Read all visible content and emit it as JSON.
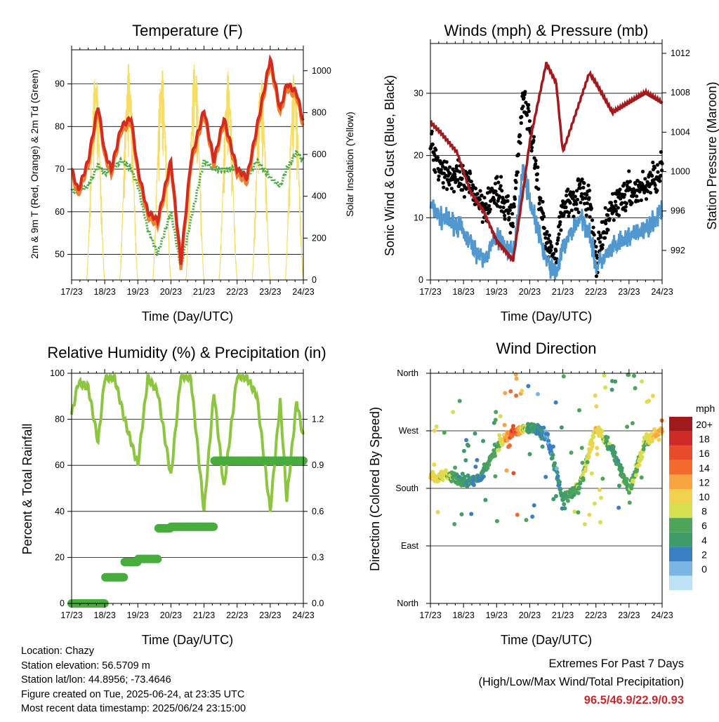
{
  "colors": {
    "temp2m": "#d42a20",
    "temp9m": "#ee7f2d",
    "dewpoint": "#4aac45",
    "solar": "#f6dd66",
    "wind": "#5198d0",
    "gust": "#000000",
    "pressure": "#a4191d",
    "rh": "#8cc63e",
    "precip": "#47ad3c",
    "extremes": "#c8282e"
  },
  "x_ticks": [
    "17/23",
    "18/23",
    "19/23",
    "20/23",
    "21/23",
    "22/23",
    "23/23",
    "24/23"
  ],
  "panels": {
    "temperature": {
      "title": "Temperature (F)",
      "ylabel_left": "2m & 9m T (Red, Orange) & 2m Td (Green)",
      "ylabel_right": "Solar Insolation (Yellow)",
      "xlabel": "Time (Day/UTC)",
      "left_ticks": [
        "50",
        "60",
        "70",
        "80",
        "90"
      ],
      "right_ticks": [
        "0",
        "200",
        "400",
        "600",
        "800",
        "1000"
      ]
    },
    "winds": {
      "title": "Winds (mph) & Pressure (mb)",
      "ylabel_left": "Sonic Wind & Gust (Blue, Black)",
      "ylabel_right": "Station Pressure (Maroon)",
      "xlabel": "Time (Day/UTC)",
      "left_ticks": [
        "0",
        "10",
        "20",
        "30"
      ],
      "right_ticks": [
        "992",
        "996",
        "1000",
        "1004",
        "1008",
        "1012"
      ]
    },
    "humidity": {
      "title": "Relative Humidity (%) & Precipitation (in)",
      "ylabel_left": "Percent & Total Rainfall",
      "xlabel": "Time (Day/UTC)",
      "left_ticks": [
        "0",
        "20",
        "40",
        "60",
        "80",
        "100"
      ],
      "right_ticks": [
        "0.0",
        "0.3",
        "0.6",
        "0.9",
        "1.2"
      ]
    },
    "direction": {
      "title": "Wind Direction",
      "ylabel_left": "Direction (Colored By Speed)",
      "xlabel": "Time (Day/UTC)",
      "left_ticks": [
        "North",
        "East",
        "South",
        "West",
        "North"
      ],
      "legend_title": "mph",
      "legend_labels": [
        "20+",
        "18",
        "16",
        "14",
        "12",
        "10",
        "8",
        "6",
        "4",
        "2",
        "0"
      ],
      "legend_colors": [
        "#a01a1c",
        "#cf2a27",
        "#e84a2c",
        "#f26a2c",
        "#f7a441",
        "#f2d14e",
        "#d6e04e",
        "#4ea55a",
        "#3f9b6a",
        "#3a7fc2",
        "#7ab5e3",
        "#bde3f7"
      ]
    }
  },
  "info": {
    "location": "Location: Chazy",
    "elevation": "Station elevation: 56.5709 m",
    "latlon": "Station lat/lon: 44.8956; -73.4646",
    "created": "Figure created on Tue, 2025-06-24, at 23:35 UTC",
    "recent": "Most recent data timestamp: 2025/06/24 23:15:00"
  },
  "extremes": {
    "title": "Extremes For Past 7 Days",
    "subtitle": "(High/Low/Max Wind/Total Precipitation)",
    "values": "96.5/46.9/22.9/0.93"
  },
  "chart_data": [
    {
      "type": "line",
      "title": "Temperature (F)",
      "xlabel": "Time (Day/UTC)",
      "ylabel": "2m & 9m T (Red, Orange) & 2m Td (Green)",
      "ylabel_right": "Solar Insolation (Yellow)",
      "ylim": [
        44,
        98
      ],
      "ylim_right": [
        0,
        1100
      ],
      "x_units": "days since 17/23",
      "x": [
        0,
        0.2,
        0.5,
        0.8,
        1.0,
        1.2,
        1.5,
        1.8,
        2.0,
        2.3,
        2.6,
        3.0,
        3.3,
        3.6,
        4.0,
        4.3,
        4.6,
        5.0,
        5.3,
        5.6,
        6.0,
        6.3,
        6.5,
        6.8,
        7.0
      ],
      "series": [
        {
          "name": "2m T",
          "values": [
            70,
            65,
            72,
            85,
            74,
            70,
            80,
            82,
            70,
            60,
            58,
            72,
            48,
            72,
            84,
            72,
            82,
            70,
            68,
            80,
            96,
            84,
            90,
            88,
            81
          ]
        },
        {
          "name": "2m Td",
          "values": [
            65,
            65,
            66,
            71,
            69,
            70,
            72,
            70,
            66,
            56,
            50,
            60,
            47,
            58,
            72,
            70,
            70,
            70,
            68,
            72,
            68,
            66,
            70,
            74,
            72
          ]
        },
        {
          "name": "Solar Insolation",
          "axis": "right",
          "peaks": [
            1000,
            1040,
            1020,
            1060,
            1000,
            980,
            1000,
            880
          ]
        }
      ],
      "x_ticks": [
        "17/23",
        "18/23",
        "19/23",
        "20/23",
        "21/23",
        "22/23",
        "23/23",
        "24/23"
      ]
    },
    {
      "type": "scatter",
      "title": "Winds (mph) & Pressure (mb)",
      "xlabel": "Time (Day/UTC)",
      "ylabel": "Sonic Wind & Gust (Blue, Black)",
      "ylabel_right": "Station Pressure (Maroon)",
      "ylim": [
        0,
        38
      ],
      "ylim_right": [
        989,
        1013
      ],
      "x": [
        0,
        0.3,
        0.8,
        1.2,
        1.6,
        2.0,
        2.5,
        2.8,
        3.0,
        3.5,
        3.8,
        4.0,
        4.5,
        4.8,
        5.0,
        5.5,
        6.0,
        6.5,
        7.0
      ],
      "series": [
        {
          "name": "Sonic Wind",
          "values": [
            12,
            10,
            9,
            6,
            3,
            7,
            4,
            18,
            13,
            3,
            1,
            5,
            10,
            8,
            2,
            5,
            7,
            8,
            11
          ]
        },
        {
          "name": "Gust",
          "values": [
            22,
            18,
            16,
            15,
            12,
            14,
            10,
            30,
            25,
            6,
            4,
            12,
            14,
            13,
            3,
            12,
            14,
            15,
            18
          ]
        },
        {
          "name": "Station Pressure",
          "axis": "right",
          "values": [
            1005,
            1004,
            1002,
            998,
            996,
            993,
            991,
            998,
            1003,
            1011,
            1009,
            1002,
            1007,
            1010,
            1009,
            1006,
            1007,
            1008,
            1007
          ]
        }
      ],
      "x_ticks": [
        "17/23",
        "18/23",
        "19/23",
        "20/23",
        "21/23",
        "22/23",
        "23/23",
        "24/23"
      ]
    },
    {
      "type": "line",
      "title": "Relative Humidity (%) & Precipitation (in)",
      "xlabel": "Time (Day/UTC)",
      "ylabel": "Percent & Total Rainfall",
      "ylim": [
        0,
        100
      ],
      "ylim_right": [
        0,
        1.5
      ],
      "x": [
        0,
        0.2,
        0.5,
        0.8,
        1.0,
        1.3,
        1.6,
        2.0,
        2.3,
        2.6,
        3.0,
        3.3,
        3.6,
        4.0,
        4.3,
        4.6,
        5.0,
        5.3,
        5.6,
        6.0,
        6.3,
        6.5,
        6.8,
        7.0
      ],
      "series": [
        {
          "name": "Relative Humidity",
          "values": [
            82,
            96,
            94,
            70,
            98,
            98,
            80,
            60,
            98,
            92,
            55,
            99,
            98,
            40,
            92,
            50,
            99,
            98,
            90,
            40,
            88,
            45,
            88,
            72
          ]
        },
        {
          "name": "Total Precipitation",
          "axis": "right",
          "values": [
            0,
            0,
            0,
            0,
            0.17,
            0.17,
            0.27,
            0.29,
            0.29,
            0.49,
            0.5,
            0.5,
            0.5,
            0.5,
            0.93,
            0.93,
            0.93,
            0.93,
            0.93,
            0.93,
            0.93,
            0.93,
            0.93,
            0.93
          ]
        }
      ],
      "x_ticks": [
        "17/23",
        "18/23",
        "19/23",
        "20/23",
        "21/23",
        "22/23",
        "23/23",
        "24/23"
      ]
    },
    {
      "type": "scatter",
      "title": "Wind Direction",
      "xlabel": "Time (Day/UTC)",
      "ylabel": "Direction (Colored By Speed)",
      "y_categories": [
        "North",
        "East",
        "South",
        "West",
        "North"
      ],
      "x": [
        0,
        0.5,
        1.0,
        1.5,
        2.0,
        2.5,
        3.0,
        3.5,
        4.0,
        4.5,
        5.0,
        5.5,
        6.0,
        6.5,
        7.0
      ],
      "series": [
        {
          "name": "Direction (deg)",
          "values": [
            195,
            200,
            190,
            195,
            245,
            270,
            275,
            265,
            165,
            180,
            275,
            240,
            175,
            255,
            270
          ]
        },
        {
          "name": "Speed (mph)",
          "values": [
            12,
            10,
            6,
            5,
            8,
            18,
            6,
            4,
            6,
            8,
            12,
            6,
            8,
            10,
            14
          ]
        }
      ],
      "x_ticks": [
        "17/23",
        "18/23",
        "19/23",
        "20/23",
        "21/23",
        "22/23",
        "23/23",
        "24/23"
      ]
    }
  ]
}
